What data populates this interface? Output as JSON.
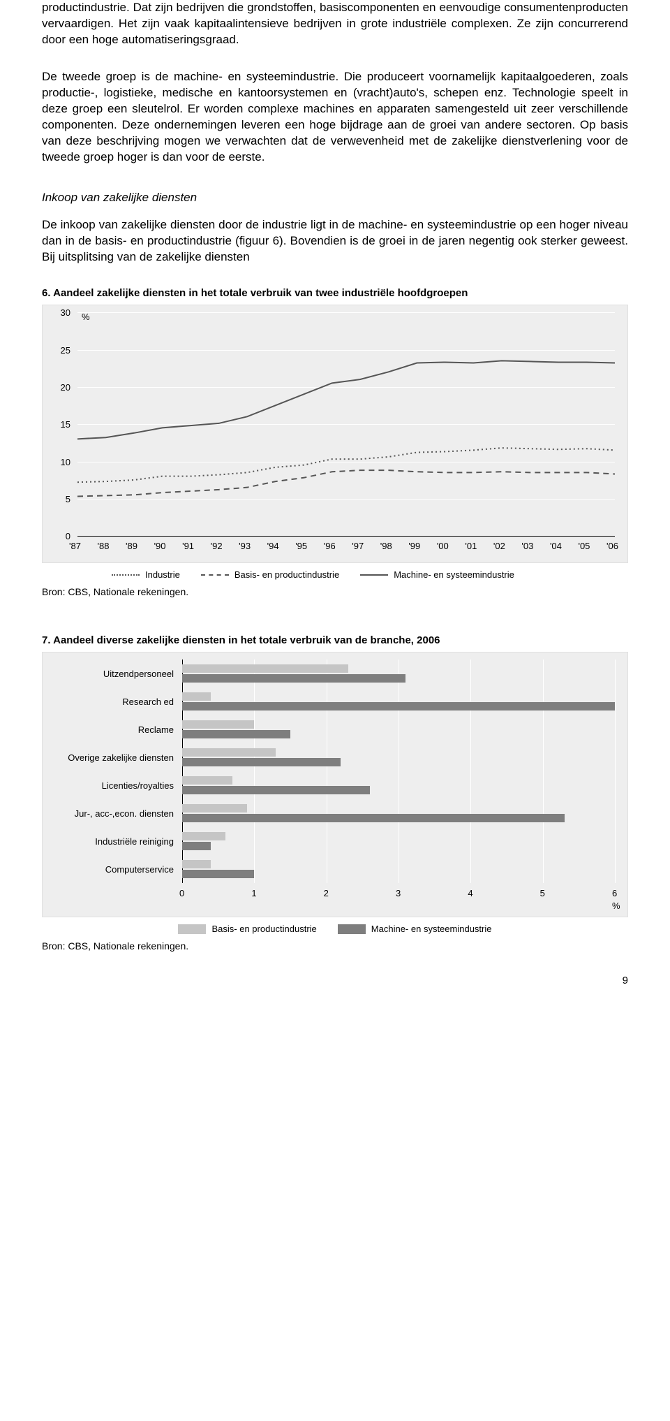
{
  "paragraph1": "productindustrie. Dat zijn bedrijven die grondstoffen, basiscomponenten en eenvoudige consumentenproducten vervaardigen. Het zijn vaak kapitaalintensieve bedrijven in grote industriële complexen. Ze zijn concurrerend door een hoge automatiseringsgraad.",
  "paragraph2": "De tweede groep is de machine- en systeemindustrie. Die produceert voornamelijk kapitaalgoederen, zoals productie-, logistieke, medische en kantoorsystemen en (vracht)auto's, schepen enz. Technologie speelt in deze groep een sleutelrol. Er worden complexe machines en apparaten samengesteld uit zeer verschillende componenten. Deze ondernemingen leveren een hoge bijdrage aan de groei van andere sectoren. Op basis van deze beschrijving mogen we verwachten dat de verwevenheid met de zakelijke dienstverlening voor de tweede groep hoger is dan voor de eerste.",
  "heading": "Inkoop van zakelijke diensten",
  "paragraph3": "De inkoop van zakelijke diensten door de industrie ligt in de machine- en systeemindustrie op een hoger niveau dan in de basis- en productindustrie (figuur 6). Bovendien is de groei in de jaren negentig ook sterker geweest. Bij uitsplitsing van de zakelijke diensten",
  "chart6": {
    "title": "6. Aandeel zakelijke diensten in het totale verbruik van twee industriële hoofdgroepen",
    "type": "line",
    "y_unit": "%",
    "ylim": [
      0,
      30
    ],
    "yticks": [
      0,
      5,
      10,
      15,
      20,
      25,
      30
    ],
    "x_categories": [
      "'87",
      "'88",
      "'89",
      "'90",
      "'91",
      "'92",
      "'93",
      "'94",
      "'95",
      "'96",
      "'97",
      "'98",
      "'99",
      "'00",
      "'01",
      "'02",
      "'03",
      "'04",
      "'05",
      "'06"
    ],
    "background_color": "#eeeeee",
    "grid_color": "#ffffff",
    "line_color": "#555555",
    "series": [
      {
        "name": "Industrie",
        "style": "dotted",
        "values": [
          7.2,
          7.3,
          7.5,
          8.0,
          8.0,
          8.2,
          8.5,
          9.2,
          9.5,
          10.3,
          10.3,
          10.6,
          11.2,
          11.3,
          11.5,
          11.8,
          11.7,
          11.6,
          11.7,
          11.5
        ]
      },
      {
        "name": "Basis- en productindustrie",
        "style": "dashed",
        "values": [
          5.3,
          5.4,
          5.5,
          5.8,
          6.0,
          6.2,
          6.5,
          7.3,
          7.8,
          8.6,
          8.8,
          8.8,
          8.6,
          8.5,
          8.5,
          8.6,
          8.5,
          8.5,
          8.5,
          8.3
        ]
      },
      {
        "name": "Machine- en systeemindustrie",
        "style": "solid",
        "values": [
          13.0,
          13.2,
          13.8,
          14.5,
          14.8,
          15.1,
          16.0,
          17.5,
          19.0,
          20.5,
          21.0,
          22.0,
          23.2,
          23.3,
          23.2,
          23.5,
          23.4,
          23.3,
          23.3,
          23.2
        ]
      }
    ],
    "source": "Bron: CBS, Nationale rekeningen.",
    "legend_labels": [
      "Industrie",
      "Basis- en productindustrie",
      "Machine- en systeemindustrie"
    ]
  },
  "chart7": {
    "title": "7. Aandeel diverse zakelijke diensten in het totale verbruik van de branche, 2006",
    "type": "bar",
    "x_unit": "%",
    "xlim": [
      0,
      6
    ],
    "xticks": [
      0,
      1,
      2,
      3,
      4,
      5,
      6
    ],
    "background_color": "#eeeeee",
    "grid_color": "#ffffff",
    "colors": {
      "basis": "#c5c5c5",
      "machine": "#7e7e7e"
    },
    "categories": [
      "Uitzendpersoneel",
      "Research ed",
      "Reclame",
      "Overige zakelijke diensten",
      "Licenties/royalties",
      "Jur-, acc-,econ. diensten",
      "Industriële reiniging",
      "Computerservice"
    ],
    "series": [
      {
        "name": "Basis- en productindustrie",
        "color": "#c5c5c5",
        "values": [
          2.3,
          0.4,
          1.0,
          1.3,
          0.7,
          0.9,
          0.6,
          0.4
        ]
      },
      {
        "name": "Machine- en systeemindustrie",
        "color": "#7e7e7e",
        "values": [
          3.1,
          6.0,
          1.5,
          2.2,
          2.6,
          5.3,
          0.4,
          1.0
        ]
      }
    ],
    "source": "Bron: CBS, Nationale rekeningen.",
    "legend_labels": [
      "Basis- en productindustrie",
      "Machine- en systeemindustrie"
    ]
  },
  "page_number": "9"
}
